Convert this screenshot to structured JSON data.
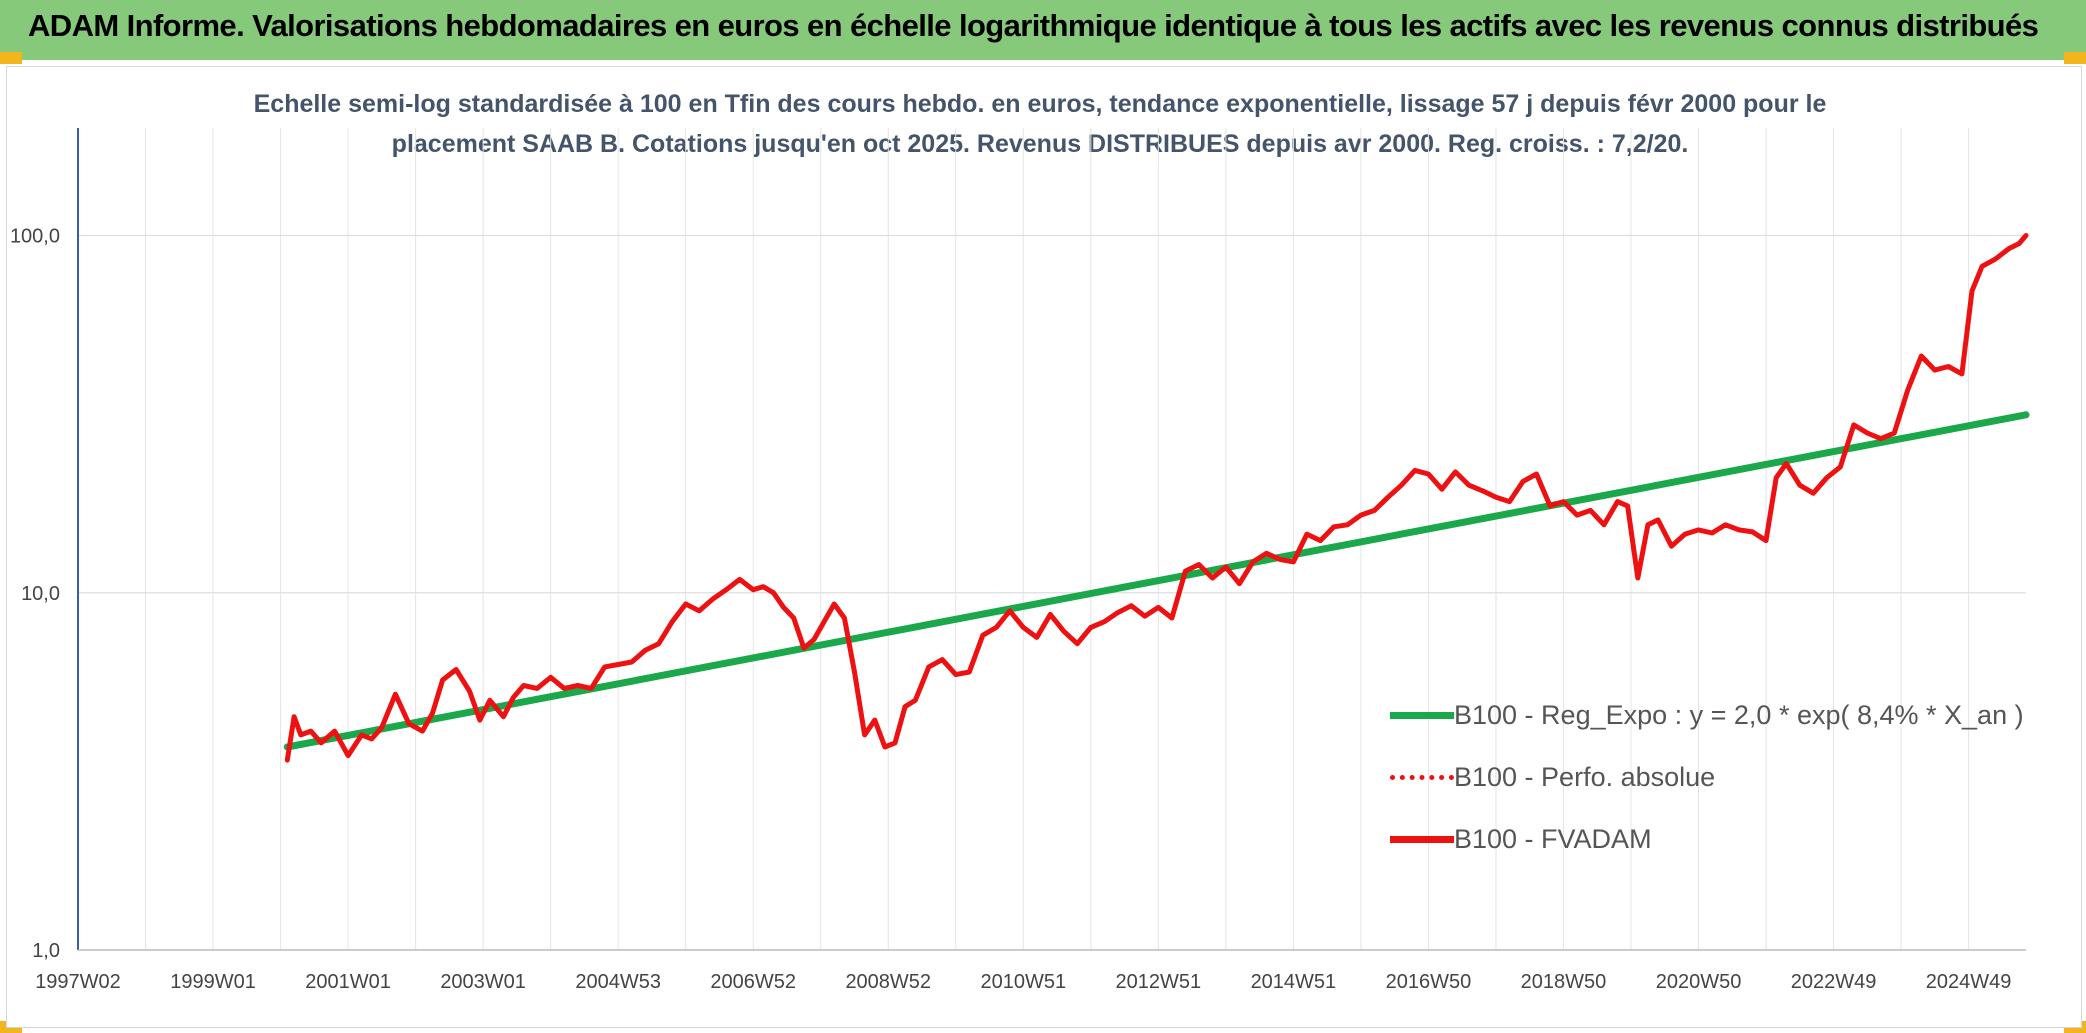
{
  "header": {
    "title": "ADAM Informe. Valorisations hebdomadaires en euros en échelle logarithmique identique à tous les actifs avec les revenus connus distribués"
  },
  "chart_data": {
    "type": "line",
    "subtitle_line1": "Echelle semi-log standardisée à 100 en Tfin des cours hebdo. en euros, tendance exponentielle, lissage 57 j depuis févr 2000 pour le",
    "subtitle_line2": "placement SAAB B. Cotations jusqu'en oct 2025. Revenus DISTRIBUES depuis avr 2000. Reg. croiss. : 7,2/20.",
    "y_scale": "log",
    "ylim": [
      1,
      200
    ],
    "y_ticks": [
      {
        "value": 1,
        "label": "1,0"
      },
      {
        "value": 10,
        "label": "10,0"
      },
      {
        "value": 100,
        "label": "100,0"
      }
    ],
    "xlim": [
      1997.0,
      2025.85
    ],
    "x_ticks": [
      {
        "value": 1997.0,
        "label": "1997W02"
      },
      {
        "value": 1999.0,
        "label": "1999W01"
      },
      {
        "value": 2001.0,
        "label": "2001W01"
      },
      {
        "value": 2003.0,
        "label": "2003W01"
      },
      {
        "value": 2005.0,
        "label": "2004W53"
      },
      {
        "value": 2007.0,
        "label": "2006W52"
      },
      {
        "value": 2009.0,
        "label": "2008W52"
      },
      {
        "value": 2011.0,
        "label": "2010W51"
      },
      {
        "value": 2013.0,
        "label": "2012W51"
      },
      {
        "value": 2015.0,
        "label": "2014W51"
      },
      {
        "value": 2017.0,
        "label": "2016W50"
      },
      {
        "value": 2019.0,
        "label": "2018W50"
      },
      {
        "value": 2021.0,
        "label": "2020W50"
      },
      {
        "value": 2023.0,
        "label": "2022W49"
      },
      {
        "value": 2025.0,
        "label": "2024W49"
      }
    ],
    "grid": true,
    "legend_position": "right",
    "series": [
      {
        "name": "B100 - Reg_Expo : y = 2,0 * exp( 8,4% *  X_an )",
        "color": "#1aa84a",
        "style": "solid",
        "x": [
          2000.1,
          2025.85
        ],
        "y": [
          3.7,
          31.5
        ]
      },
      {
        "name": "B100 - Perfo. absolue",
        "color": "#ee1111",
        "style": "dotted",
        "x": [],
        "y": []
      },
      {
        "name": "B100 - FVADAM",
        "color": "#ee1111",
        "style": "solid",
        "x": [
          2000.1,
          2000.2,
          2000.3,
          2000.45,
          2000.6,
          2000.8,
          2001.0,
          2001.2,
          2001.35,
          2001.5,
          2001.7,
          2001.9,
          2002.1,
          2002.25,
          2002.4,
          2002.6,
          2002.8,
          2002.95,
          2003.1,
          2003.3,
          2003.45,
          2003.6,
          2003.8,
          2004.0,
          2004.2,
          2004.4,
          2004.6,
          2004.8,
          2005.0,
          2005.2,
          2005.4,
          2005.6,
          2005.8,
          2006.0,
          2006.2,
          2006.4,
          2006.6,
          2006.8,
          2007.0,
          2007.15,
          2007.3,
          2007.45,
          2007.6,
          2007.75,
          2007.9,
          2008.05,
          2008.2,
          2008.35,
          2008.5,
          2008.65,
          2008.8,
          2008.95,
          2009.1,
          2009.25,
          2009.4,
          2009.6,
          2009.8,
          2010.0,
          2010.2,
          2010.4,
          2010.6,
          2010.8,
          2011.0,
          2011.2,
          2011.4,
          2011.6,
          2011.8,
          2012.0,
          2012.2,
          2012.4,
          2012.6,
          2012.8,
          2013.0,
          2013.2,
          2013.4,
          2013.6,
          2013.8,
          2014.0,
          2014.2,
          2014.4,
          2014.6,
          2014.8,
          2015.0,
          2015.2,
          2015.4,
          2015.6,
          2015.8,
          2016.0,
          2016.2,
          2016.4,
          2016.6,
          2016.8,
          2017.0,
          2017.2,
          2017.4,
          2017.6,
          2017.8,
          2018.0,
          2018.2,
          2018.4,
          2018.6,
          2018.8,
          2019.0,
          2019.2,
          2019.4,
          2019.6,
          2019.8,
          2019.95,
          2020.1,
          2020.25,
          2020.4,
          2020.6,
          2020.8,
          2021.0,
          2021.2,
          2021.4,
          2021.6,
          2021.8,
          2022.0,
          2022.15,
          2022.3,
          2022.5,
          2022.7,
          2022.9,
          2023.1,
          2023.3,
          2023.5,
          2023.7,
          2023.9,
          2024.1,
          2024.3,
          2024.5,
          2024.7,
          2024.9,
          2025.05,
          2025.2,
          2025.4,
          2025.6,
          2025.75,
          2025.85
        ],
        "y": [
          3.4,
          4.5,
          4.0,
          4.1,
          3.8,
          4.1,
          3.5,
          4.0,
          3.9,
          4.2,
          5.2,
          4.3,
          4.1,
          4.6,
          5.7,
          6.1,
          5.3,
          4.4,
          5.0,
          4.5,
          5.1,
          5.5,
          5.4,
          5.8,
          5.4,
          5.5,
          5.4,
          6.2,
          6.3,
          6.4,
          6.9,
          7.2,
          8.3,
          9.3,
          8.9,
          9.6,
          10.2,
          10.9,
          10.2,
          10.4,
          10.0,
          9.1,
          8.5,
          7.0,
          7.4,
          8.3,
          9.3,
          8.5,
          6.0,
          4.0,
          4.4,
          3.7,
          3.8,
          4.8,
          5.0,
          6.2,
          6.5,
          5.9,
          6.0,
          7.6,
          8.0,
          8.9,
          8.0,
          7.5,
          8.7,
          7.8,
          7.2,
          8.0,
          8.3,
          8.8,
          9.2,
          8.6,
          9.1,
          8.5,
          11.5,
          12.0,
          11.0,
          11.8,
          10.6,
          12.2,
          12.9,
          12.4,
          12.2,
          14.6,
          14.0,
          15.3,
          15.5,
          16.5,
          17.0,
          18.5,
          20.0,
          22.0,
          21.5,
          19.5,
          21.8,
          20.0,
          19.3,
          18.5,
          18.0,
          20.5,
          21.5,
          17.5,
          18.0,
          16.5,
          17.0,
          15.5,
          18.0,
          17.5,
          11.0,
          15.5,
          16.0,
          13.5,
          14.6,
          15.0,
          14.7,
          15.5,
          15.0,
          14.8,
          14.0,
          21.0,
          23.0,
          20.0,
          19.0,
          21.0,
          22.5,
          29.5,
          28.0,
          27.0,
          28.0,
          37.0,
          46.0,
          42.0,
          43.0,
          41.0,
          70.0,
          82.0,
          86.0,
          92.0,
          95.0,
          100.0
        ]
      }
    ]
  }
}
